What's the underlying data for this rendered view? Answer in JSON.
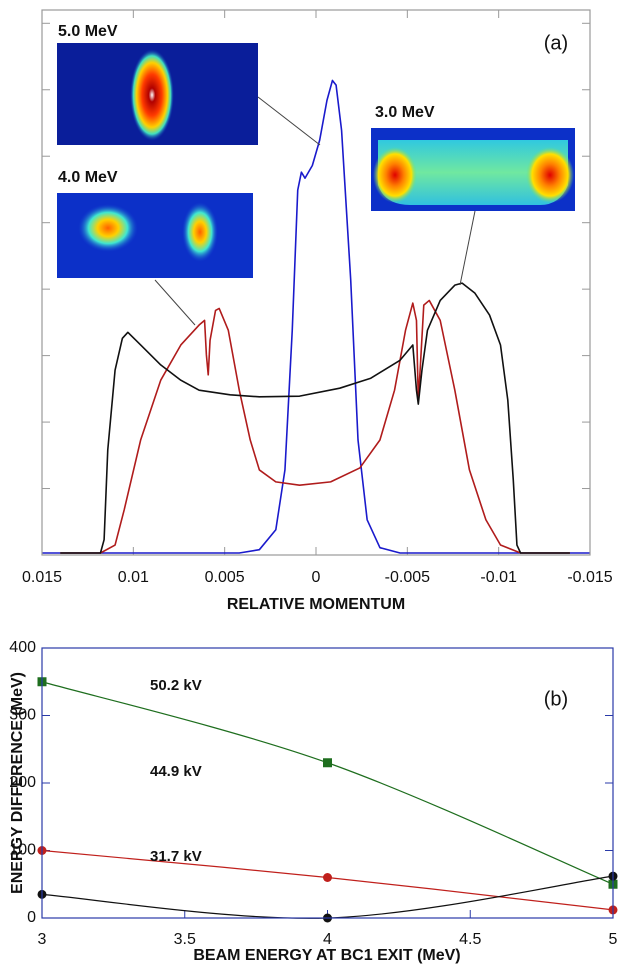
{
  "chart_data": [
    {
      "type": "line",
      "annotation": "(a)",
      "x_label": "RELATIVE MOMENTUM",
      "xlim": [
        0.015,
        -0.015
      ],
      "xticks": [
        0.015,
        0.01,
        0.005,
        0,
        -0.005,
        -0.01,
        -0.015
      ],
      "ylim": [
        0,
        8.2
      ],
      "yticks": [
        0,
        1,
        2,
        3,
        4,
        5,
        6,
        7,
        8
      ],
      "ytick_labels": false,
      "smooth": false,
      "series": [
        {
          "name": "5.0 MeV",
          "color": "#1a1acc",
          "x": [
            0.015,
            0.0042,
            0.0031,
            0.0022,
            0.0017,
            0.0013,
            0.001,
            0.0008,
            0.0006,
            0.0002,
            -0.0002,
            -0.0006,
            -0.0009,
            -0.0011,
            -0.0014,
            -0.0019,
            -0.0023,
            -0.0028,
            -0.0035,
            -0.0046,
            -0.015
          ],
          "values": [
            0.03,
            0.03,
            0.08,
            0.38,
            1.28,
            3.38,
            5.49,
            5.76,
            5.67,
            5.86,
            6.24,
            6.84,
            7.14,
            7.07,
            6.39,
            4.14,
            1.73,
            0.53,
            0.11,
            0.03,
            0.03
          ]
        },
        {
          "name": "4.0 MeV",
          "color": "#b01c1c",
          "x": [
            0.014,
            0.0118,
            0.011,
            0.0105,
            0.0096,
            0.0085,
            0.0074,
            0.0064,
            0.0061,
            0.006,
            0.0059,
            0.0058,
            0.0055,
            0.0053,
            0.0048,
            0.0042,
            0.0036,
            0.0031,
            0.0022,
            0.0009,
            -0.0008,
            -0.0024,
            -0.0035,
            -0.0043,
            -0.0049,
            -0.0053,
            -0.0055,
            -0.0056,
            -0.0057,
            -0.0059,
            -0.0062,
            -0.0068,
            -0.0076,
            -0.0084,
            -0.0093,
            -0.0101,
            -0.0112,
            -0.0139
          ],
          "values": [
            0.03,
            0.03,
            0.15,
            0.68,
            1.73,
            2.63,
            3.16,
            3.46,
            3.53,
            3.01,
            2.71,
            3.23,
            3.68,
            3.71,
            3.38,
            2.48,
            1.73,
            1.28,
            1.1,
            1.05,
            1.1,
            1.31,
            1.73,
            2.48,
            3.38,
            3.79,
            3.53,
            2.33,
            2.78,
            3.76,
            3.83,
            3.53,
            2.48,
            1.28,
            0.53,
            0.15,
            0.03,
            0.03
          ]
        },
        {
          "name": "3.0 MeV",
          "color": "#111111",
          "x": [
            0.014,
            0.0118,
            0.0116,
            0.0114,
            0.011,
            0.0106,
            0.0103,
            0.0096,
            0.0085,
            0.0074,
            0.0064,
            0.0047,
            0.0031,
            0.0009,
            -0.0013,
            -0.003,
            -0.0046,
            -0.0053,
            -0.0055,
            -0.0056,
            -0.0058,
            -0.0061,
            -0.0068,
            -0.0076,
            -0.008,
            -0.0087,
            -0.0095,
            -0.0101,
            -0.0105,
            -0.0108,
            -0.011,
            -0.0112,
            -0.0139
          ],
          "values": [
            0.03,
            0.03,
            0.23,
            1.58,
            2.78,
            3.26,
            3.35,
            3.16,
            2.86,
            2.63,
            2.48,
            2.41,
            2.38,
            2.39,
            2.51,
            2.66,
            2.93,
            3.16,
            2.48,
            2.27,
            2.78,
            3.38,
            3.83,
            4.06,
            4.09,
            3.94,
            3.61,
            3.16,
            2.33,
            1.13,
            0.15,
            0.03,
            0.03
          ]
        }
      ]
    },
    {
      "type": "line",
      "annotation": "(b)",
      "x_label": "BEAM ENERGY AT BC1 EXIT  (MeV)",
      "y_label": "ENERGY DIFFERENCE (MeV)",
      "x": [
        3,
        4,
        5
      ],
      "xlim": [
        3,
        5
      ],
      "xticks": [
        3,
        3.5,
        4,
        4.5,
        5
      ],
      "ylim": [
        0,
        400
      ],
      "yticks": [
        0,
        100,
        200,
        300,
        400
      ],
      "ytick_labels": true,
      "smooth": true,
      "series": [
        {
          "name": "50.2 kV",
          "color": "#1e6e1e",
          "marker": "square",
          "values": [
            350,
            230,
            50
          ]
        },
        {
          "name": "44.9 kV",
          "color": "#c0201c",
          "marker": "circle",
          "values": [
            100,
            60,
            12
          ]
        },
        {
          "name": "31.7 kV",
          "color": "#111111",
          "marker": "circle",
          "values": [
            35,
            0,
            62
          ]
        }
      ]
    }
  ]
}
